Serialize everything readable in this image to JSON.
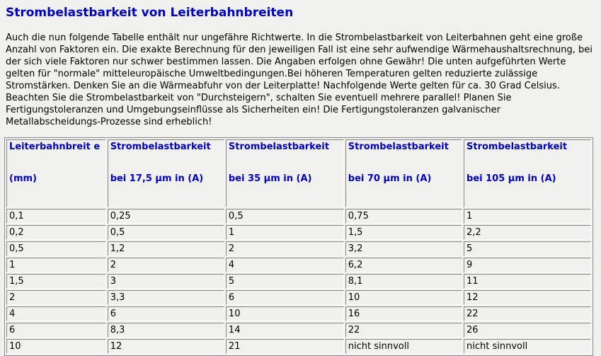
{
  "page": {
    "title": "Strombelastbarkeit von Leiterbahnbreiten",
    "intro": "Auch die nun folgende Tabelle enthält nur ungefähre Richtwerte. In die Strombelastbarkeit von Leiterbahnen geht eine große Anzahl von Faktoren ein. Die exakte Berechnung für den jeweiligen Fall ist eine sehr aufwendige Wärmehaushaltsrechnung, bei der sich viele Faktoren nur schwer bestimmen lassen. Die Angaben erfolgen ohne Gewähr! Die unten aufgeführten Werte gelten für \"normale\" mitteleuropäische Umweltbedingungen.Bei höheren Temperaturen gelten reduzierte zulässige Stromstärken. Denken Sie an die Wärmeabfuhr von der Leiterplatte! Nachfolgende Werte gelten für ca. 30 Grad Celsius. Beachten Sie die Strombelastbarkeit von \"Durchsteigern\", schalten Sie eventuell mehrere parallel! Planen Sie Fertigungstoleranzen und Umgebungseinflüsse als Sicherheiten ein! Die Fertigungstoleranzen galvanischer Metallabscheidungs-Prozesse sind erheblich!"
  },
  "colors": {
    "accent_blue": "#0000cc",
    "page_background": "#f0f0ee",
    "border_dark": "#868686",
    "border_light": "#fbfbfb",
    "text": "#000000"
  },
  "table": {
    "type": "table",
    "headers": [
      {
        "line1": "Leiterbahnbreit e",
        "line2": "(mm)"
      },
      {
        "line1": "Strombelastbarkeit",
        "line2": "bei 17,5 µm in (A)"
      },
      {
        "line1": "Strombelastbarkeit",
        "line2": "bei 35 µm in (A)"
      },
      {
        "line1": "Strombelastbarkeit",
        "line2": "bei 70 µm in (A)"
      },
      {
        "line1": "Strombelastbarkeit",
        "line2": "bei 105 µm in (A)"
      }
    ],
    "rows": [
      [
        "0,1",
        "0,25",
        "0,5",
        "0,75",
        "1"
      ],
      [
        "0,2",
        "0,5",
        "1",
        "1,5",
        "2,2"
      ],
      [
        "0,5",
        "1,2",
        "2",
        "3,2",
        "5"
      ],
      [
        "1",
        "2",
        "4",
        "6,2",
        "9"
      ],
      [
        "1,5",
        "3",
        "5",
        "8,1",
        "11"
      ],
      [
        "2",
        "3,3",
        "6",
        "10",
        "12"
      ],
      [
        "4",
        "6",
        "10",
        "16",
        "22"
      ],
      [
        "6",
        "8,3",
        "14",
        "22",
        "26"
      ],
      [
        "10",
        "12",
        "21",
        "nicht sinnvoll",
        "nicht sinnvoll"
      ]
    ]
  }
}
